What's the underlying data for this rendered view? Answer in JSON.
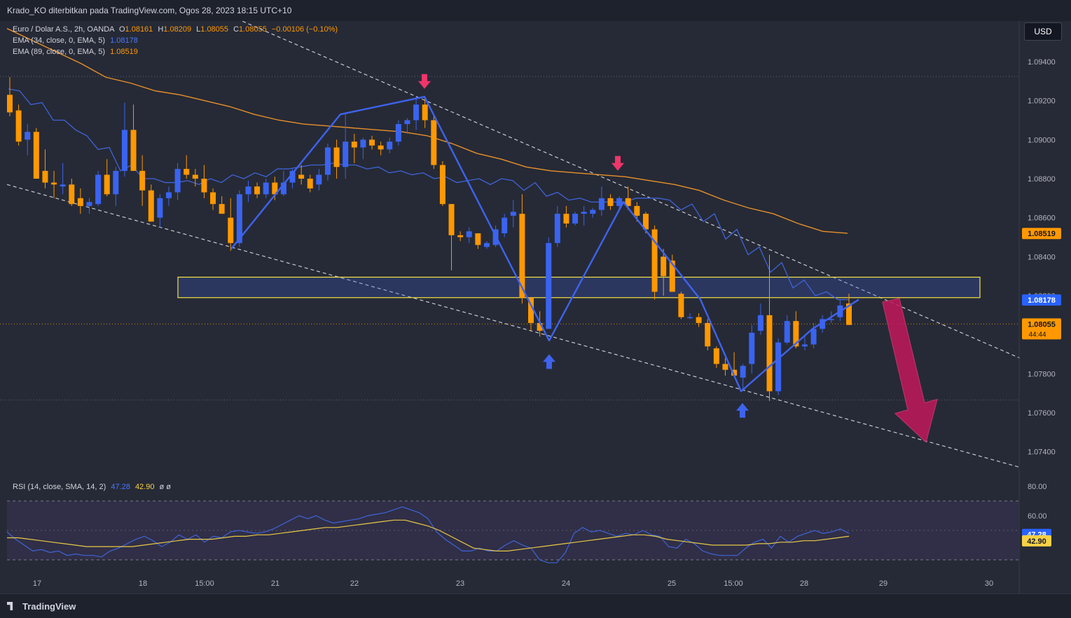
{
  "header": {
    "publisher_line": "Krado_KO diterbitkan pada TradingView.com, Ogos 28, 2023 18:15 UTC+10"
  },
  "legend": {
    "symbol": "Euro / Dolar A.S., 2h, OANDA",
    "o_label": "O",
    "o": "1.08161",
    "h_label": "H",
    "h": "1.08209",
    "l_label": "L",
    "l": "1.08055",
    "c_label": "C",
    "c": "1.08055",
    "change": "−0.00106 (−0.10%)",
    "ema34_label": "EMA (34, close, 0, EMA, 5)",
    "ema34_value": "1.08178",
    "ema89_label": "EMA (89, close, 0, EMA, 5)",
    "ema89_value": "1.08519",
    "rsi_label": "RSI (14, close, SMA, 14, 2)",
    "rsi_value": "47.28",
    "rsi_ma_value": "42.90",
    "rsi_extra": "ø  ø"
  },
  "currency_button": "USD",
  "footer": {
    "brand": "TradingView"
  },
  "colors": {
    "up": "#3a64f0",
    "down": "#ff9800",
    "ema34": "#3f63d9",
    "ema89": "#e8902a",
    "rsi": "#3f63d9",
    "rsi_ma": "#e8c846",
    "zone": "#f5e348",
    "arrow": "#c2185b"
  },
  "chart_data": [
    {
      "type": "candlestick",
      "symbol": "EUR/USD",
      "timeframe": "2h",
      "x_ticks": [
        "17",
        "18",
        "15:00",
        "21",
        "22",
        "23",
        "24",
        "25",
        "15:00",
        "28",
        "29",
        "30"
      ],
      "y_ticks": [
        1.094,
        1.092,
        1.09,
        1.088,
        1.086,
        1.084,
        1.082,
        1.078,
        1.076,
        1.074
      ],
      "y_tick_labels": [
        "1.09400",
        "1.09200",
        "1.09000",
        "1.08800",
        "1.08600",
        "1.08400",
        "1.08200",
        "1.07800",
        "1.07600",
        "1.07400"
      ],
      "ylim": [
        1.0712,
        1.0962
      ],
      "price_labels": [
        {
          "value": 1.08519,
          "text": "1.08519",
          "series": "ema89"
        },
        {
          "value": 1.08178,
          "text": "1.08178",
          "series": "ema34"
        },
        {
          "value": 1.08055,
          "text": "1.08055",
          "sub": "44:44",
          "series": "price"
        }
      ],
      "candles": [
        [
          1.0923,
          1.0932,
          1.0912,
          1.0914
        ],
        [
          1.0915,
          1.0918,
          1.0897,
          1.0899
        ],
        [
          1.09,
          1.0908,
          1.0892,
          1.0904
        ],
        [
          1.0904,
          1.0906,
          1.088,
          1.088
        ],
        [
          1.0884,
          1.0895,
          1.0875,
          1.0878
        ],
        [
          1.0878,
          1.0884,
          1.087,
          1.0877
        ],
        [
          1.0876,
          1.0888,
          1.0872,
          1.0877
        ],
        [
          1.0877,
          1.088,
          1.0866,
          1.0867
        ],
        [
          1.087,
          1.0875,
          1.0862,
          1.0866
        ],
        [
          1.0866,
          1.087,
          1.0862,
          1.0868
        ],
        [
          1.0867,
          1.0884,
          1.0866,
          1.0882
        ],
        [
          1.0882,
          1.089,
          1.0871,
          1.0872
        ],
        [
          1.0872,
          1.0886,
          1.0866,
          1.0884
        ],
        [
          1.0884,
          1.0919,
          1.0881,
          1.0905
        ],
        [
          1.0905,
          1.0918,
          1.0884,
          1.0884
        ],
        [
          1.0884,
          1.0892,
          1.0866,
          1.0874
        ],
        [
          1.0874,
          1.0877,
          1.0858,
          1.0858
        ],
        [
          1.086,
          1.0872,
          1.0855,
          1.087
        ],
        [
          1.087,
          1.0876,
          1.0866,
          1.0873
        ],
        [
          1.0873,
          1.0888,
          1.0869,
          1.0885
        ],
        [
          1.0885,
          1.0892,
          1.088,
          1.0882
        ],
        [
          1.0882,
          1.0885,
          1.0876,
          1.088
        ],
        [
          1.088,
          1.0887,
          1.087,
          1.0873
        ],
        [
          1.0873,
          1.0875,
          1.0864,
          1.0867
        ],
        [
          1.0867,
          1.0871,
          1.0864,
          1.0862
        ],
        [
          1.086,
          1.087,
          1.0843,
          1.0847
        ],
        [
          1.0847,
          1.0874,
          1.0845,
          1.0872
        ],
        [
          1.0872,
          1.0879,
          1.0868,
          1.0876
        ],
        [
          1.0876,
          1.0878,
          1.087,
          1.0872
        ],
        [
          1.0872,
          1.088,
          1.087,
          1.0878
        ],
        [
          1.0878,
          1.0881,
          1.0869,
          1.0872
        ],
        [
          1.0872,
          1.0884,
          1.0871,
          1.0878
        ],
        [
          1.0878,
          1.0885,
          1.0875,
          1.0884
        ],
        [
          1.0882,
          1.0887,
          1.0877,
          1.088
        ],
        [
          1.088,
          1.0882,
          1.0873,
          1.0875
        ],
        [
          1.0877,
          1.0885,
          1.0874,
          1.0882
        ],
        [
          1.0882,
          1.0898,
          1.0879,
          1.0896
        ],
        [
          1.0896,
          1.09,
          1.088,
          1.0886
        ],
        [
          1.0886,
          1.0914,
          1.088,
          1.0899
        ],
        [
          1.0899,
          1.0903,
          1.0888,
          1.0896
        ],
        [
          1.0896,
          1.0901,
          1.089,
          1.09
        ],
        [
          1.09,
          1.0902,
          1.0895,
          1.0897
        ],
        [
          1.0897,
          1.0899,
          1.0892,
          1.0895
        ],
        [
          1.0895,
          1.0901,
          1.0893,
          1.0899
        ],
        [
          1.0899,
          1.091,
          1.0897,
          1.0908
        ],
        [
          1.0908,
          1.0911,
          1.0903,
          1.091
        ],
        [
          1.091,
          1.0922,
          1.0905,
          1.0918
        ],
        [
          1.0918,
          1.0922,
          1.0906,
          1.091
        ],
        [
          1.091,
          1.0912,
          1.0885,
          1.0887
        ],
        [
          1.0887,
          1.0889,
          1.0866,
          1.0867
        ],
        [
          1.0867,
          1.0867,
          1.0833,
          1.0851
        ],
        [
          1.0851,
          1.0853,
          1.0848,
          1.085
        ],
        [
          1.085,
          1.0855,
          1.0847,
          1.0853
        ],
        [
          1.0852,
          1.0852,
          1.0844,
          1.0846
        ],
        [
          1.0845,
          1.0848,
          1.0844,
          1.0847
        ],
        [
          1.0846,
          1.0856,
          1.0845,
          1.0854
        ],
        [
          1.0852,
          1.0862,
          1.085,
          1.086
        ],
        [
          1.0861,
          1.0869,
          1.0855,
          1.0863
        ],
        [
          1.0862,
          1.0872,
          1.0816,
          1.0819
        ],
        [
          1.0819,
          1.0819,
          1.0802,
          1.0806
        ],
        [
          1.0806,
          1.0812,
          1.0799,
          1.0802
        ],
        [
          1.0803,
          1.085,
          1.0803,
          1.0847
        ],
        [
          1.0847,
          1.0866,
          1.0845,
          1.0862
        ],
        [
          1.0862,
          1.0866,
          1.0855,
          1.0857
        ],
        [
          1.0857,
          1.0863,
          1.0856,
          1.0862
        ],
        [
          1.0862,
          1.0866,
          1.0856,
          1.0863
        ],
        [
          1.0862,
          1.0865,
          1.086,
          1.0864
        ],
        [
          1.0864,
          1.0876,
          1.0861,
          1.087
        ],
        [
          1.087,
          1.0872,
          1.0864,
          1.0866
        ],
        [
          1.0866,
          1.0871,
          1.0864,
          1.087
        ],
        [
          1.087,
          1.0876,
          1.0864,
          1.0866
        ],
        [
          1.0866,
          1.0868,
          1.0858,
          1.0861
        ],
        [
          1.0862,
          1.0863,
          1.0852,
          1.0854
        ],
        [
          1.0854,
          1.0856,
          1.0818,
          1.0822
        ],
        [
          1.084,
          1.0844,
          1.082,
          1.083
        ],
        [
          1.0838,
          1.0841,
          1.0822,
          1.0822
        ],
        [
          1.0821,
          1.0822,
          1.0808,
          1.0809
        ],
        [
          1.0809,
          1.0811,
          1.0808,
          1.0809
        ],
        [
          1.0809,
          1.0811,
          1.0804,
          1.0806
        ],
        [
          1.0806,
          1.0808,
          1.0792,
          1.0794
        ],
        [
          1.0793,
          1.0794,
          1.0783,
          1.0785
        ],
        [
          1.0785,
          1.0788,
          1.0779,
          1.0782
        ],
        [
          1.0782,
          1.0791,
          1.0779,
          1.0779
        ],
        [
          1.0778,
          1.0785,
          1.0771,
          1.0784
        ],
        [
          1.0785,
          1.0805,
          1.078,
          1.0801
        ],
        [
          1.0802,
          1.0816,
          1.08,
          1.081
        ],
        [
          1.081,
          1.0841,
          1.0766,
          1.0771
        ],
        [
          1.0771,
          1.0798,
          1.0769,
          1.0796
        ],
        [
          1.0796,
          1.081,
          1.0795,
          1.0807
        ],
        [
          1.0807,
          1.0812,
          1.0793,
          1.0794
        ],
        [
          1.0794,
          1.08,
          1.0792,
          1.0795
        ],
        [
          1.0795,
          1.0806,
          1.0793,
          1.0803
        ],
        [
          1.0803,
          1.081,
          1.0801,
          1.0808
        ],
        [
          1.0808,
          1.0812,
          1.0806,
          1.0808
        ],
        [
          1.0809,
          1.0818,
          1.0807,
          1.0815
        ],
        [
          1.0816,
          1.0821,
          1.0805,
          1.0805
        ]
      ],
      "ema34": [
        [
          1.0926,
          1.0925
        ],
        [
          1.0918,
          1.0919
        ],
        [
          1.091,
          1.091
        ],
        [
          1.0905,
          1.0902
        ],
        [
          1.0895,
          1.0896
        ],
        [
          1.0884,
          1.0887
        ],
        [
          1.088,
          1.088
        ],
        [
          1.0878,
          1.0878
        ],
        [
          1.0879,
          1.0877
        ],
        [
          1.088,
          1.0878
        ],
        [
          1.0882,
          1.088
        ],
        [
          1.0883,
          1.0881
        ],
        [
          1.0885,
          1.0885
        ],
        [
          1.0886,
          1.0887
        ],
        [
          1.0887,
          1.0888
        ],
        [
          1.0887,
          1.0887
        ],
        [
          1.0885,
          1.0886
        ],
        [
          1.0883,
          1.0884
        ],
        [
          1.0882,
          1.0883
        ],
        [
          1.088,
          1.0881
        ],
        [
          1.0878,
          1.0879
        ],
        [
          1.088,
          1.0877
        ],
        [
          1.088,
          1.0879
        ],
        [
          1.0874,
          1.0878
        ],
        [
          1.0871,
          1.0873
        ],
        [
          1.0869,
          1.087
        ],
        [
          1.0868,
          1.0868
        ],
        [
          1.0868,
          1.0868
        ],
        [
          1.087,
          1.087
        ],
        [
          1.087,
          1.0869
        ],
        [
          1.0864,
          1.0867
        ],
        [
          1.0858,
          1.0862
        ],
        [
          1.0849,
          1.0854
        ],
        [
          1.0841,
          1.0845
        ],
        [
          1.0832,
          1.0837
        ],
        [
          1.0824,
          1.0828
        ],
        [
          1.082,
          1.0822
        ],
        [
          1.0818,
          1.0818
        ]
      ],
      "ema89": [
        1.0957,
        1.0951,
        1.0945,
        1.0939,
        1.0932,
        1.0929,
        1.0925,
        1.0923,
        1.092,
        1.0917,
        1.0913,
        1.091,
        1.0908,
        1.0907,
        1.0906,
        1.0905,
        1.0904,
        1.0902,
        1.0898,
        1.0893,
        1.089,
        1.0886,
        1.0884,
        1.0883,
        1.0882,
        1.0881,
        1.0879,
        1.0877,
        1.0874,
        1.0869,
        1.0865,
        1.0862,
        1.0857,
        1.0853,
        1.0852
      ],
      "annotations": {
        "zigzag": [
          [
            1.0844
          ],
          [
            1.0913
          ],
          [
            1.0922
          ],
          [
            1.0797
          ],
          [
            1.0868
          ],
          [
            1.0818
          ],
          [
            1.0771
          ],
          [
            1.0803
          ],
          [
            1.0818
          ]
        ],
        "zone": [
          1.08295,
          1.0819
        ],
        "resistance_line": [
          1.0962,
          1.0788
        ],
        "support_line": [
          1.0877,
          1.0732
        ],
        "hlines": [
          1.09324,
          1.08055,
          1.07665
        ],
        "down_markers": [
          1.0925,
          1.0883
        ],
        "up_markers": [
          1.079,
          1.0765
        ]
      }
    },
    {
      "type": "line",
      "name": "RSI (14, close, SMA, 14, 2)",
      "y_ticks": [
        80,
        60
      ],
      "y_tick_labels": [
        "80.00",
        "60.00"
      ],
      "ylim": [
        20,
        88
      ],
      "bands": [
        70,
        30
      ],
      "midline": 50,
      "value_labels": [
        {
          "value": 47.28,
          "text": "47.28",
          "series": "rsi"
        },
        {
          "value": 42.9,
          "text": "42.90",
          "series": "rsi_ma"
        }
      ],
      "rsi": [
        49,
        44,
        40,
        36,
        37,
        35,
        36,
        33,
        34,
        33,
        33,
        32,
        36,
        38,
        41,
        44,
        46,
        43,
        39,
        42,
        47,
        44,
        47,
        42,
        46,
        45,
        49,
        50,
        49,
        48,
        49,
        51,
        54,
        57,
        60,
        58,
        60,
        57,
        55,
        56,
        57,
        58,
        60,
        61,
        62,
        64,
        66,
        64,
        62,
        58,
        49,
        44,
        40,
        36,
        36,
        38,
        36,
        36,
        40,
        43,
        40,
        38,
        30,
        28,
        28,
        35,
        48,
        52,
        49,
        50,
        48,
        46,
        48,
        47,
        50,
        47,
        46,
        39,
        38,
        44,
        41,
        36,
        34,
        33,
        33,
        33,
        38,
        42,
        44,
        38,
        46,
        42,
        46,
        48,
        50,
        48,
        49,
        51,
        48
      ],
      "rsi_ma": [
        45,
        45,
        44,
        43,
        42,
        41,
        40,
        39,
        39,
        39,
        39,
        39,
        40,
        41,
        42,
        43,
        44,
        44,
        44,
        45,
        46,
        46,
        47,
        47,
        48,
        49,
        50,
        51,
        52,
        52,
        53,
        54,
        55,
        56,
        57,
        57,
        55,
        53,
        50,
        46,
        42,
        38,
        37,
        36,
        36,
        37,
        38,
        39,
        40,
        41,
        42,
        43,
        44,
        45,
        46,
        47,
        47,
        46,
        44,
        43,
        42,
        41,
        40,
        40,
        40,
        40,
        41,
        41,
        42,
        42,
        43,
        43,
        44,
        45,
        46
      ]
    }
  ],
  "x_tick_labels": [
    "17",
    "18",
    "15:00",
    "21",
    "22",
    "23",
    "24",
    "25",
    "15:00",
    "28",
    "29",
    "30"
  ]
}
